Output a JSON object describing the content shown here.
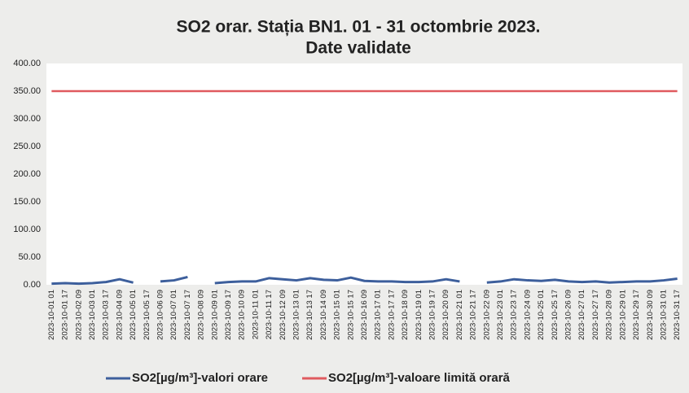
{
  "chart_data": {
    "type": "line",
    "title": "SO2 orar. Stația BN1. 01 - 31 octombrie 2023.",
    "subtitle": "Date validate",
    "categories": [
      "2023-10-01 01",
      "2023-10-01 17",
      "2023-10-02 09",
      "2023-10-03 01",
      "2023-10-03 17",
      "2023-10-04 09",
      "2023-10-05 01",
      "2023-10-05 17",
      "2023-10-06 09",
      "2023-10-07 01",
      "2023-10-07 17",
      "2023-10-08 09",
      "2023-10-09 01",
      "2023-10-09 17",
      "2023-10-10 09",
      "2023-10-11 01",
      "2023-10-11 17",
      "2023-10-12 09",
      "2023-10-13 01",
      "2023-10-13 17",
      "2023-10-14 09",
      "2023-10-15 01",
      "2023-10-15 17",
      "2023-10-16 09",
      "2023-10-17 01",
      "2023-10-17 17",
      "2023-10-18 09",
      "2023-10-19 01",
      "2023-10-19 17",
      "2023-10-20 09",
      "2023-10-21 01",
      "2023-10-21 17",
      "2023-10-22 09",
      "2023-10-23 01",
      "2023-10-23 17",
      "2023-10-24 09",
      "2023-10-25 01",
      "2023-10-25 17",
      "2023-10-26 09",
      "2023-10-27 01",
      "2023-10-27 17",
      "2023-10-28 09",
      "2023-10-29 01",
      "2023-10-29 17",
      "2023-10-30 09",
      "2023-10-31 01",
      "2023-10-31 17"
    ],
    "series": [
      {
        "name": "SO2[µg/m³]-valori orare",
        "color": "#3d5f9c",
        "values": [
          2,
          3,
          2,
          3,
          5,
          10,
          4,
          null,
          6,
          8,
          14,
          null,
          3,
          5,
          6,
          6,
          12,
          10,
          8,
          12,
          9,
          8,
          13,
          7,
          6,
          6,
          5,
          5,
          6,
          10,
          6,
          null,
          4,
          6,
          10,
          8,
          7,
          9,
          6,
          5,
          6,
          4,
          5,
          6,
          6,
          8,
          11
        ]
      },
      {
        "name": "SO2[µg/m³]-valoare limită orară",
        "color": "#e05a5f",
        "values": [
          350,
          350,
          350,
          350,
          350,
          350,
          350,
          350,
          350,
          350,
          350,
          350,
          350,
          350,
          350,
          350,
          350,
          350,
          350,
          350,
          350,
          350,
          350,
          350,
          350,
          350,
          350,
          350,
          350,
          350,
          350,
          350,
          350,
          350,
          350,
          350,
          350,
          350,
          350,
          350,
          350,
          350,
          350,
          350,
          350,
          350,
          350
        ]
      }
    ],
    "ylim": [
      0,
      400
    ],
    "yticks": [
      {
        "value": 0,
        "label": "0.00"
      },
      {
        "value": 50,
        "label": "50.00"
      },
      {
        "value": 100,
        "label": "100.00"
      },
      {
        "value": 150,
        "label": "150.00"
      },
      {
        "value": 200,
        "label": "200.00"
      },
      {
        "value": 250,
        "label": "250.00"
      },
      {
        "value": 300,
        "label": "300.00"
      },
      {
        "value": 350,
        "label": "350.00"
      },
      {
        "value": 400,
        "label": "400.00"
      }
    ],
    "grid": false,
    "legend": "bottom"
  }
}
